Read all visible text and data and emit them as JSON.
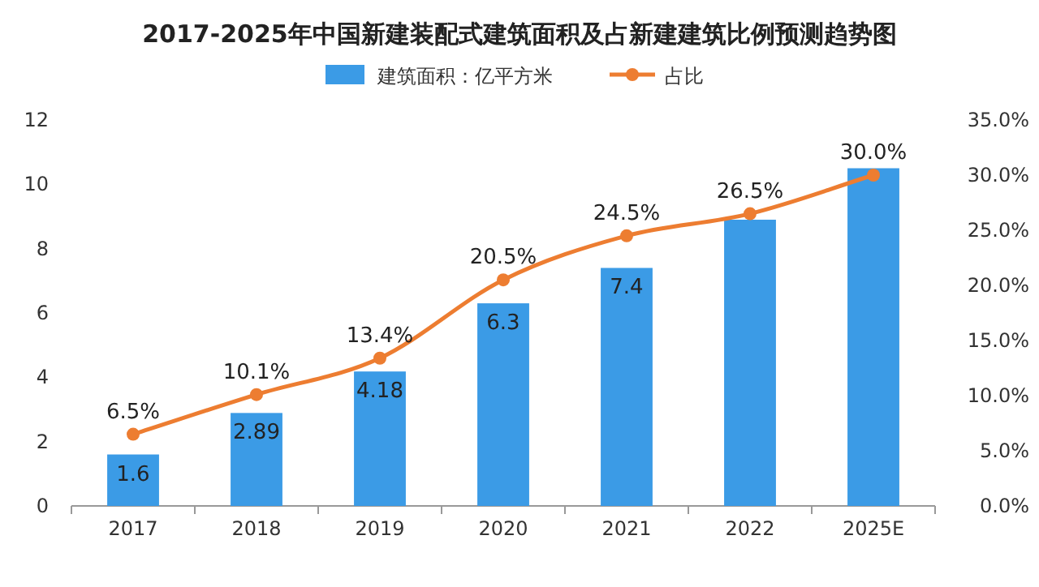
{
  "chart_data": {
    "type": "bar",
    "title": "2017-2025年中国新建装配式建筑面积及占新建建筑比例预测趋势图",
    "categories": [
      "2017",
      "2018",
      "2019",
      "2020",
      "2021",
      "2022",
      "2025E"
    ],
    "series": [
      {
        "name": "建筑面积：亿平方米",
        "color": "#3b9be6",
        "values": [
          1.6,
          2.89,
          4.18,
          6.3,
          7.4,
          8.9,
          10.5
        ],
        "value_labels": [
          "1.6",
          "2.89",
          "4.18",
          "6.3",
          "7.4",
          null,
          null
        ]
      },
      {
        "name": "占比",
        "type": "line",
        "axis": "y2",
        "color": "#ed7d31",
        "values": [
          6.5,
          10.1,
          13.4,
          20.5,
          24.5,
          26.5,
          30.0
        ],
        "value_labels": [
          "6.5%",
          "10.1%",
          "13.4%",
          "20.5%",
          "24.5%",
          "26.5%",
          "30.0%"
        ]
      }
    ],
    "ylim": [
      0,
      12
    ],
    "yticks": [
      0,
      2,
      4,
      6,
      8,
      10,
      12
    ],
    "y2lim": [
      0,
      35
    ],
    "y2ticks": [
      {
        "value": 0,
        "label": "0.0%"
      },
      {
        "value": 5,
        "label": "5.0%"
      },
      {
        "value": 10,
        "label": "10.0%"
      },
      {
        "value": 15,
        "label": "15.0%"
      },
      {
        "value": 20,
        "label": "20.0%"
      },
      {
        "value": 25,
        "label": "25.0%"
      },
      {
        "value": 30,
        "label": "30.0%"
      },
      {
        "value": 35,
        "label": "35.0%"
      }
    ],
    "marker": "circle",
    "legend": "top",
    "grid": false
  }
}
